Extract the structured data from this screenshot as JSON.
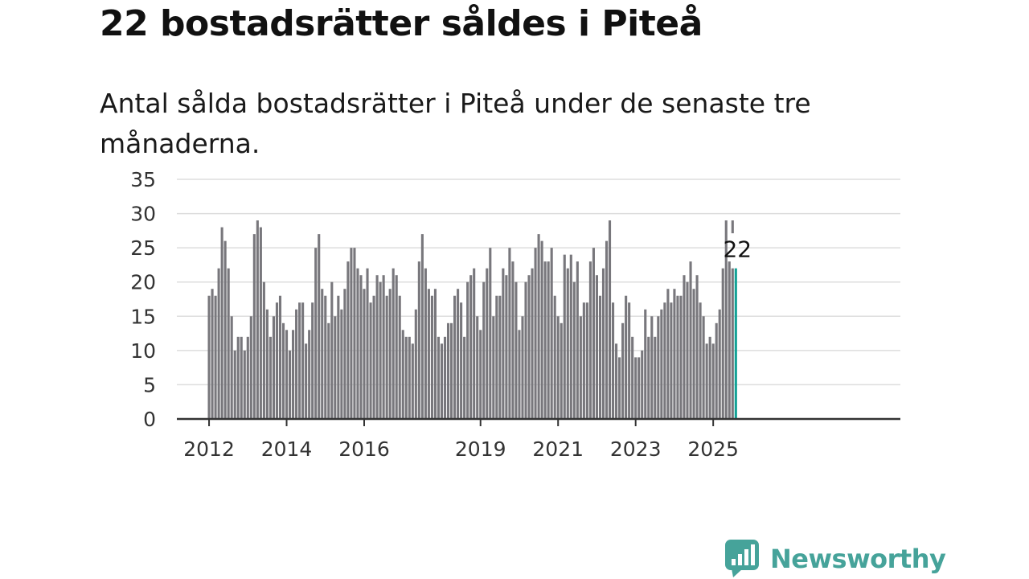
{
  "title": "22 bostadsrätter såldes i Piteå",
  "subtitle": "Antal sålda bostadsrätter i Piteå under de senaste tre månaderna.",
  "brand": {
    "name": "Newsworthy",
    "color": "#46a39a"
  },
  "chart_data": {
    "type": "bar",
    "title": "22 bostadsrätter såldes i Piteå",
    "subtitle": "Antal sålda bostadsrätter i Piteå under de senaste tre månaderna.",
    "xlabel": "",
    "ylabel": "",
    "ylim": [
      0,
      35
    ],
    "yticks": [
      0,
      5,
      10,
      15,
      20,
      25,
      30,
      35
    ],
    "xtick_labels": [
      "2012",
      "2014",
      "2016",
      "2019",
      "2021",
      "2023",
      "2025"
    ],
    "grid": true,
    "bar_color": "#78777c",
    "highlight_color": "#12a296",
    "start": "2012-01",
    "values": [
      18,
      19,
      18,
      22,
      28,
      26,
      22,
      15,
      10,
      12,
      12,
      10,
      12,
      15,
      27,
      29,
      28,
      20,
      16,
      12,
      15,
      17,
      18,
      14,
      13,
      10,
      13,
      16,
      17,
      17,
      11,
      13,
      17,
      25,
      27,
      19,
      18,
      14,
      20,
      15,
      18,
      16,
      19,
      23,
      25,
      25,
      22,
      21,
      19,
      22,
      17,
      18,
      21,
      20,
      21,
      18,
      19,
      22,
      21,
      18,
      13,
      12,
      12,
      11,
      16,
      23,
      27,
      22,
      19,
      18,
      19,
      12,
      11,
      12,
      14,
      14,
      18,
      19,
      17,
      12,
      20,
      21,
      22,
      15,
      13,
      20,
      22,
      25,
      15,
      18,
      18,
      22,
      21,
      25,
      23,
      20,
      13,
      15,
      20,
      21,
      22,
      25,
      27,
      26,
      23,
      23,
      25,
      18,
      15,
      14,
      24,
      22,
      24,
      20,
      23,
      15,
      17,
      17,
      23,
      25,
      21,
      18,
      22,
      26,
      29,
      17,
      11,
      9,
      14,
      18,
      17,
      12,
      9,
      9,
      10,
      16,
      12,
      15,
      12,
      15,
      16,
      17,
      19,
      17,
      19,
      18,
      18,
      21,
      20,
      23,
      19,
      21,
      17,
      15,
      11,
      12,
      11,
      14,
      16,
      22,
      29,
      23,
      22
    ],
    "highlight": {
      "value": 22,
      "label": "22"
    },
    "marker_bar_value": 29
  }
}
